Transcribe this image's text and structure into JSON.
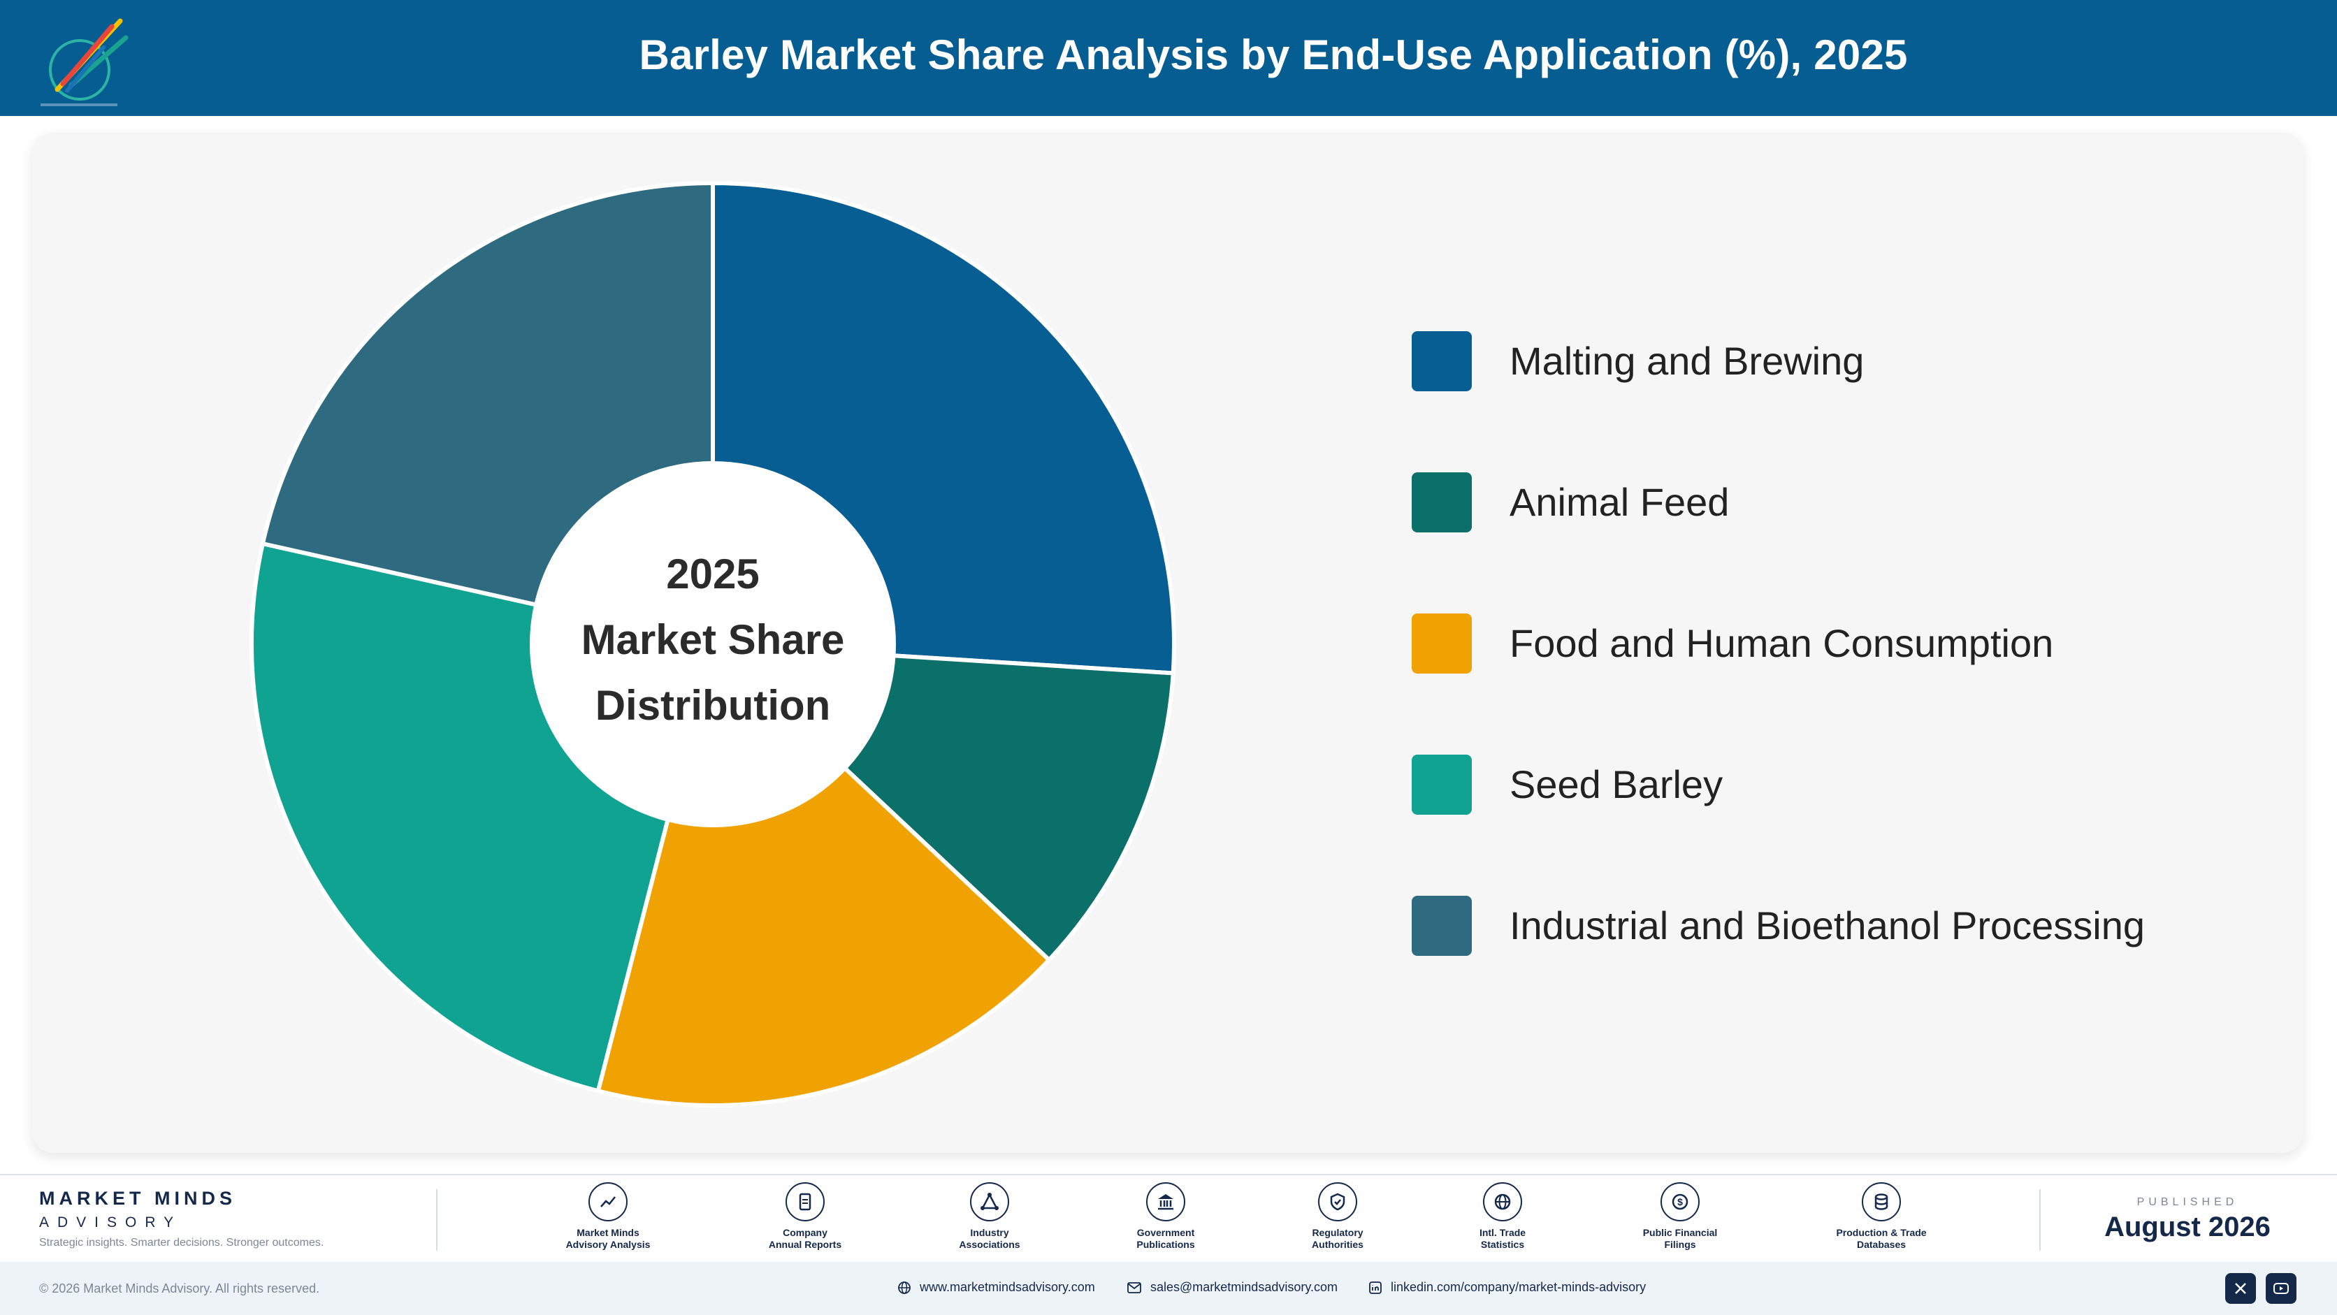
{
  "header": {
    "title": "Barley Market Share Analysis by End-Use Application (%), 2025"
  },
  "chart_data": {
    "type": "pie",
    "title": "Barley Market Share Analysis by End-Use Application (%), 2025",
    "center_label": [
      "2025",
      "Market Share",
      "Distribution"
    ],
    "categories": [
      "Malting and Brewing",
      "Animal Feed",
      "Food and Human Consumption",
      "Seed Barley",
      "Industrial and Bioethanol Processing"
    ],
    "values": [
      26,
      11,
      17,
      24.5,
      21.5
    ],
    "colors": [
      "#075e93",
      "#0b6f6a",
      "#f0a202",
      "#11a392",
      "#2f6b80"
    ],
    "donut": true,
    "legend_position": "right"
  },
  "footer": {
    "brand_name": "MARKET MINDS",
    "brand_sub": "ADVISORY",
    "tagline": "Strategic insights. Smarter decisions. Stronger outcomes.",
    "sources": [
      {
        "icon": "trend-chart-icon",
        "line1": "Market Minds",
        "line2": "Advisory Analysis"
      },
      {
        "icon": "document-icon",
        "line1": "Company",
        "line2": "Annual Reports"
      },
      {
        "icon": "network-icon",
        "line1": "Industry",
        "line2": "Associations"
      },
      {
        "icon": "government-building-icon",
        "line1": "Government",
        "line2": "Publications"
      },
      {
        "icon": "shield-check-icon",
        "line1": "Regulatory",
        "line2": "Authorities"
      },
      {
        "icon": "globe-icon",
        "line1": "Intl. Trade",
        "line2": "Statistics"
      },
      {
        "icon": "dollar-coin-icon",
        "line1": "Public Financial",
        "line2": "Filings"
      },
      {
        "icon": "database-icon",
        "line1": "Production & Trade",
        "line2": "Databases"
      }
    ],
    "published_label": "PUBLISHED",
    "published_date": "August 2026"
  },
  "bottom": {
    "copyright": "© 2026 Market Minds Advisory. All rights reserved.",
    "website": "www.marketmindsadvisory.com",
    "email": "sales@marketmindsadvisory.com",
    "linkedin": "linkedin.com/company/market-minds-advisory"
  }
}
